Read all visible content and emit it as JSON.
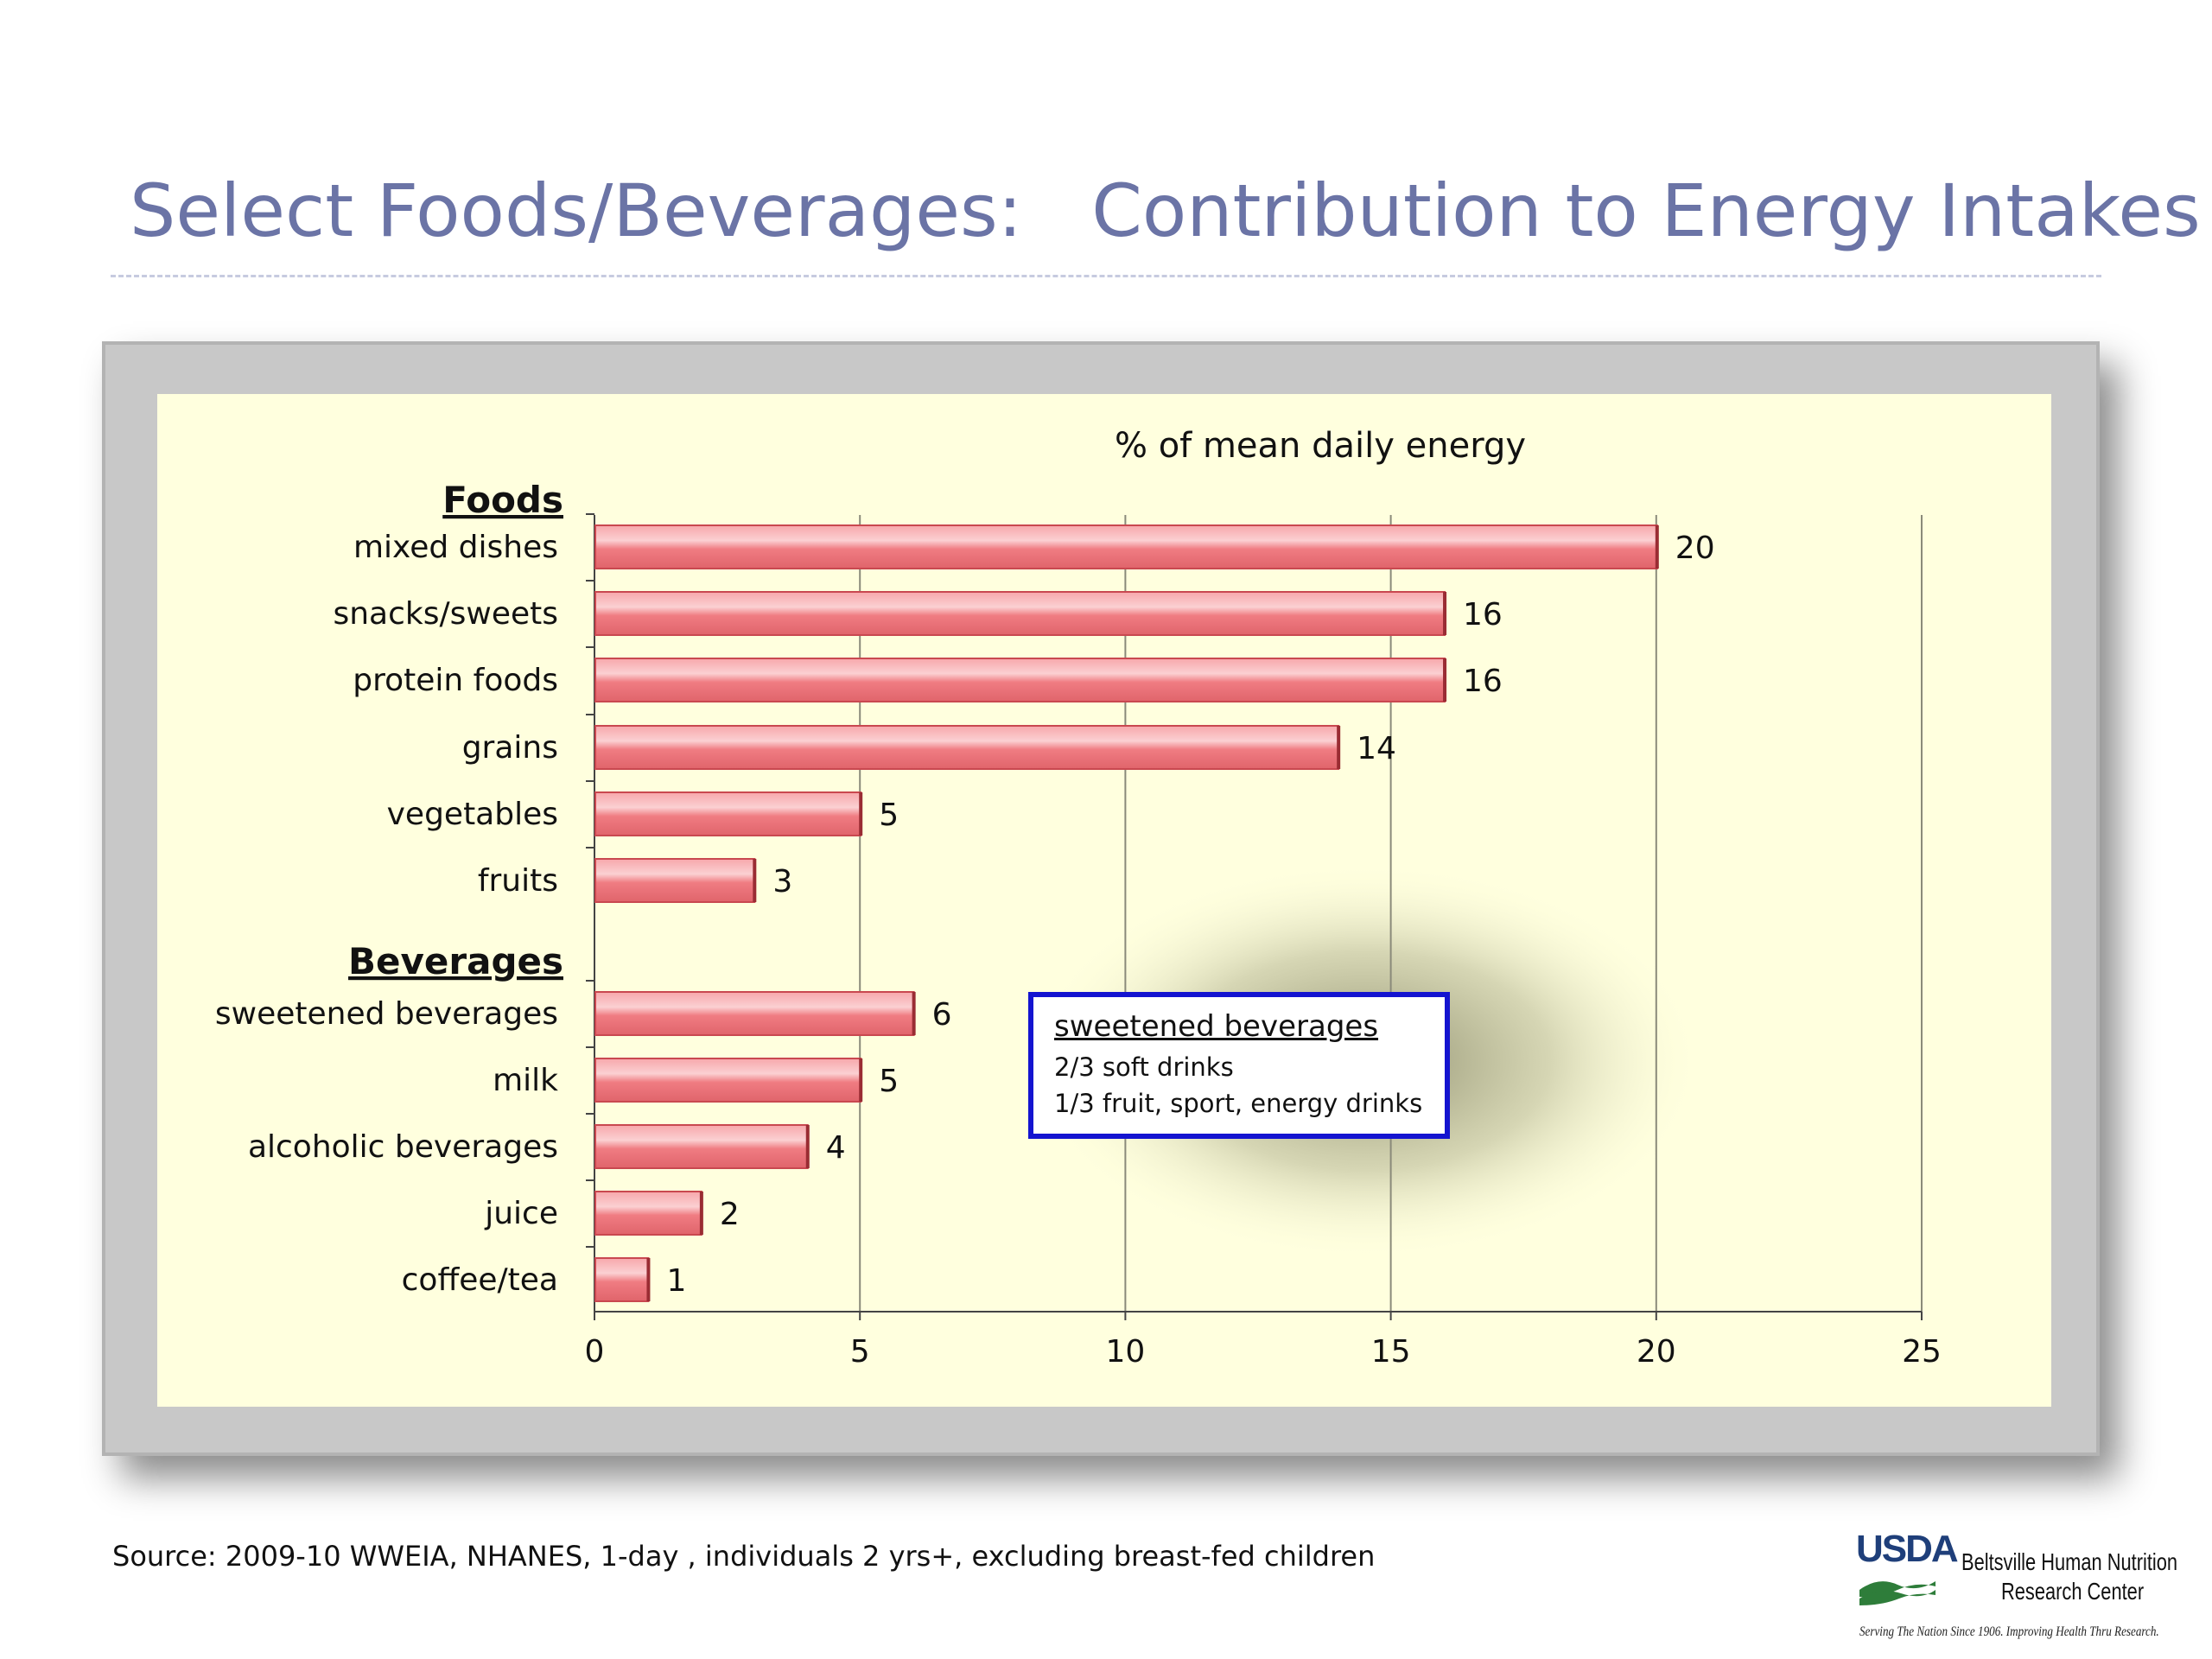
{
  "slide": {
    "title": "Select Foods/Beverages:   Contribution to Energy Intakes",
    "source": "Source:  2009-10 WWEIA, NHANES, 1-day , individuals 2 yrs+, excluding breast-fed children"
  },
  "logo": {
    "usda": "USDA",
    "org_line1": "Beltsville Human Nutrition",
    "org_line2": "Research Center",
    "motto": "Serving The Nation Since 1906. Improving Health Thru Research."
  },
  "callout": {
    "title": "sweetened beverages",
    "line1": "2/3 soft drinks",
    "line2": "1/3 fruit, sport, energy drinks"
  },
  "chart_data": {
    "type": "bar",
    "orientation": "horizontal",
    "title": "% of mean daily energy",
    "xlim": [
      0,
      25
    ],
    "xticks": [
      0,
      5,
      10,
      15,
      20,
      25
    ],
    "grid": true,
    "groups": [
      {
        "label": "Foods",
        "categories": [
          "mixed dishes",
          "snacks/sweets",
          "protein foods",
          "grains",
          "vegetables",
          "fruits"
        ],
        "values": [
          20,
          16,
          16,
          14,
          5,
          3
        ]
      },
      {
        "label": "Beverages",
        "categories": [
          "sweetened beverages",
          "milk",
          "alcoholic beverages",
          "juice",
          "coffee/tea"
        ],
        "values": [
          6,
          5,
          4,
          2,
          1
        ]
      }
    ],
    "colors": {
      "bar": "#f07c82",
      "bar_highlight": "#fbd2d4",
      "bar_shade": "#c94850",
      "plot_bg": "#ffffde",
      "frame": "#c8c8c8",
      "callout_border": "#1414d0",
      "title": "#6b74a6"
    }
  }
}
